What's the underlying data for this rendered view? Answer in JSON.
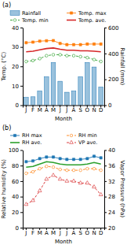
{
  "chart_data": [
    {
      "type": "line",
      "title": "(a)",
      "categories": [
        "J",
        "F",
        "M",
        "A",
        "M",
        "J",
        "J",
        "A",
        "S",
        "O",
        "N",
        "D"
      ],
      "x_label": "Month",
      "y_label": "Temp. (°C)",
      "y2_label": "Rainfall (mm)",
      "ylim": [
        0,
        40
      ],
      "yticks": [
        0,
        10,
        20,
        30,
        40
      ],
      "y2lim": [
        0,
        600
      ],
      "y2ticks": [
        0,
        200,
        400,
        600
      ],
      "legend": "top",
      "series": [
        {
          "name": "Rainfall",
          "type": "bar",
          "axis": "y2",
          "values": [
            60,
            65,
            110,
            220,
            330,
            185,
            100,
            110,
            220,
            330,
            295,
            140
          ]
        },
        {
          "name": "Temp. max",
          "type": "line",
          "marker": "square",
          "line_style": "solid",
          "values": [
            32.2,
            32.5,
            33.0,
            33.2,
            33.3,
            31.8,
            31.2,
            31.2,
            31.2,
            31.5,
            31.5,
            31.5
          ]
        },
        {
          "name": "Temp. min",
          "type": "line",
          "marker": "circle",
          "line_style": "dashed",
          "values": [
            22.5,
            23.0,
            24.0,
            25.5,
            26.0,
            26.0,
            25.5,
            25.5,
            25.0,
            24.5,
            23.5,
            22.5
          ]
        },
        {
          "name": "Temp. ave.",
          "type": "line",
          "line_style": "solid",
          "values": [
            27.5,
            27.8,
            28.5,
            29.2,
            29.5,
            28.8,
            28.3,
            28.3,
            28.0,
            28.0,
            27.8,
            27.5
          ]
        }
      ]
    },
    {
      "type": "line",
      "title": "(b)",
      "categories": [
        "J",
        "F",
        "M",
        "A",
        "M",
        "J",
        "J",
        "A",
        "S",
        "O",
        "N",
        "D"
      ],
      "x_label": "Month",
      "y_label": "Relative humidity (%)",
      "y2_label": "Vapor Pressure (hPa)",
      "ylim": [
        0,
        100
      ],
      "yticks": [
        0,
        20,
        40,
        60,
        80,
        100
      ],
      "y2lim": [
        20,
        40
      ],
      "y2ticks": [
        20,
        24,
        28,
        32,
        36,
        40
      ],
      "legend": "top",
      "series": [
        {
          "name": "RH max",
          "type": "line",
          "marker": "square",
          "line_style": "solid",
          "values": [
            85,
            86,
            89,
            91,
            91,
            89,
            88,
            88,
            88,
            89,
            92,
            90
          ]
        },
        {
          "name": "RH min",
          "type": "line",
          "marker": "circle",
          "line_style": "dashed",
          "values": [
            70,
            72,
            76,
            79,
            78,
            75,
            74,
            74,
            74,
            76,
            76,
            74
          ]
        },
        {
          "name": "RH ave.",
          "type": "line",
          "line_style": "solid",
          "values": [
            78,
            79,
            82,
            85,
            84,
            82,
            81,
            81,
            81,
            82,
            84,
            82
          ]
        },
        {
          "name": "VP ave.",
          "type": "line",
          "axis": "y2",
          "marker": "triangle",
          "line_style": "dashed",
          "values": [
            26.0,
            27.0,
            29.5,
            32.5,
            33.5,
            32.5,
            32.0,
            32.0,
            31.5,
            31.5,
            30.5,
            28.5
          ]
        }
      ]
    }
  ]
}
